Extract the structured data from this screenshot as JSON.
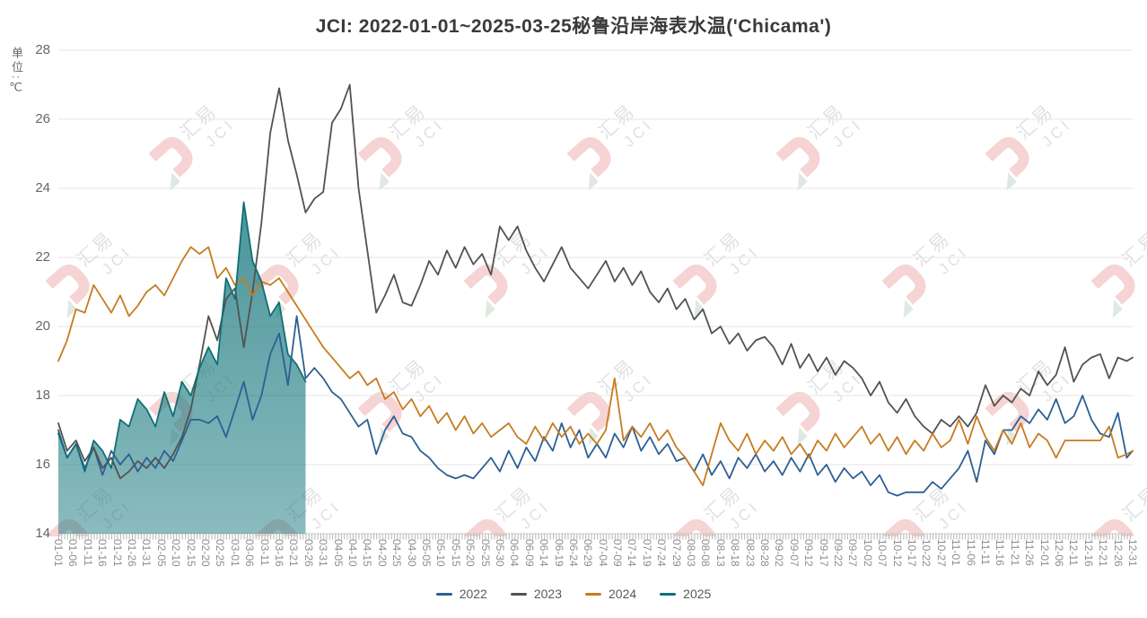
{
  "header": {
    "title": "JCI: 2022-01-01~2025-03-25秘鲁沿岸海表水温('Chicama')"
  },
  "watermark": {
    "line1": "汇易",
    "line2": "JCI"
  },
  "chart_data": {
    "type": "line",
    "title": "JCI: 2022-01-01~2025-03-25秘鲁沿岸海表水温('Chicama')",
    "xlabel": "",
    "ylabel": "单位:℃",
    "ylim": [
      14,
      28
    ],
    "yticks": [
      14,
      16,
      18,
      20,
      22,
      24,
      26,
      28
    ],
    "grid": "horizontal",
    "legend_position": "bottom",
    "x_domain_days": 366,
    "x_tick_step_days": 5,
    "x_minor_tick_step_days": 1,
    "x_tick_labels": [
      "01-01",
      "01-06",
      "01-11",
      "01-16",
      "01-21",
      "01-26",
      "01-31",
      "02-05",
      "02-10",
      "02-15",
      "02-20",
      "02-25",
      "03-01",
      "03-06",
      "03-11",
      "03-16",
      "03-21",
      "03-26",
      "03-31",
      "04-05",
      "04-10",
      "04-15",
      "04-20",
      "04-25",
      "04-30",
      "05-05",
      "05-10",
      "05-15",
      "05-20",
      "05-25",
      "05-30",
      "06-04",
      "06-09",
      "06-14",
      "06-19",
      "06-24",
      "06-29",
      "07-04",
      "07-09",
      "07-14",
      "07-19",
      "07-24",
      "07-29",
      "08-03",
      "08-08",
      "08-13",
      "08-18",
      "08-23",
      "08-28",
      "09-02",
      "09-07",
      "09-12",
      "09-17",
      "09-22",
      "09-27",
      "10-02",
      "10-07",
      "10-12",
      "10-17",
      "10-22",
      "10-27",
      "11-01",
      "11-06",
      "11-11",
      "11-16",
      "11-21",
      "11-26",
      "12-01",
      "12-06",
      "12-11",
      "12-16",
      "12-21",
      "12-26",
      "12-31"
    ],
    "series": [
      {
        "name": "2022",
        "color": "#2d5f93",
        "area_fill": false,
        "day_start": 1,
        "day_step": 3,
        "end_day": 366,
        "values": [
          17.0,
          16.2,
          16.6,
          15.9,
          16.5,
          15.7,
          16.4,
          16.0,
          16.3,
          15.8,
          16.2,
          15.9,
          16.4,
          16.1,
          16.7,
          17.3,
          17.3,
          17.2,
          17.4,
          16.8,
          17.6,
          18.4,
          17.3,
          18.0,
          19.2,
          19.8,
          18.3,
          20.3,
          18.5,
          18.8,
          18.5,
          18.1,
          17.9,
          17.5,
          17.1,
          17.3,
          16.3,
          17.0,
          17.4,
          16.9,
          16.8,
          16.4,
          16.2,
          15.9,
          15.7,
          15.6,
          15.7,
          15.6,
          15.9,
          16.2,
          15.8,
          16.4,
          15.9,
          16.5,
          16.1,
          16.8,
          16.4,
          17.2,
          16.5,
          17.0,
          16.2,
          16.6,
          16.2,
          16.9,
          16.5,
          17.1,
          16.4,
          16.8,
          16.3,
          16.6,
          16.1,
          16.2,
          15.8,
          16.3,
          15.7,
          16.1,
          15.6,
          16.2,
          15.9,
          16.3,
          15.8,
          16.1,
          15.7,
          16.2,
          15.8,
          16.3,
          15.7,
          16.0,
          15.5,
          15.9,
          15.6,
          15.8,
          15.4,
          15.7,
          15.2,
          15.1,
          15.2,
          15.2,
          15.2,
          15.5,
          15.3,
          15.6,
          15.9,
          16.4,
          15.5,
          16.7,
          16.3,
          17.0,
          17.0,
          17.4,
          17.2,
          17.6,
          17.3,
          17.9,
          17.2,
          17.4,
          18.0,
          17.3,
          16.9,
          16.8,
          17.5,
          16.2,
          16.4
        ]
      },
      {
        "name": "2023",
        "color": "#525252",
        "area_fill": false,
        "day_start": 1,
        "day_step": 3,
        "end_day": 366,
        "values": [
          17.2,
          16.4,
          16.7,
          16.1,
          16.5,
          15.9,
          16.2,
          15.6,
          15.8,
          16.1,
          15.9,
          16.2,
          15.9,
          16.3,
          16.8,
          17.6,
          18.9,
          20.3,
          19.6,
          20.8,
          21.1,
          19.4,
          21.0,
          23.0,
          25.6,
          26.9,
          25.4,
          24.4,
          23.3,
          23.7,
          23.9,
          25.9,
          26.3,
          27.0,
          24.0,
          22.2,
          20.4,
          20.9,
          21.5,
          20.7,
          20.6,
          21.2,
          21.9,
          21.5,
          22.2,
          21.7,
          22.3,
          21.8,
          22.1,
          21.5,
          22.9,
          22.5,
          22.9,
          22.2,
          21.7,
          21.3,
          21.8,
          22.3,
          21.7,
          21.4,
          21.1,
          21.5,
          21.9,
          21.3,
          21.7,
          21.2,
          21.6,
          21.0,
          20.7,
          21.1,
          20.5,
          20.8,
          20.2,
          20.5,
          19.8,
          20.0,
          19.5,
          19.8,
          19.3,
          19.6,
          19.7,
          19.4,
          18.9,
          19.5,
          18.8,
          19.2,
          18.7,
          19.1,
          18.6,
          19.0,
          18.8,
          18.5,
          18.0,
          18.4,
          17.8,
          17.5,
          17.9,
          17.4,
          17.1,
          16.9,
          17.3,
          17.1,
          17.4,
          17.1,
          17.5,
          18.3,
          17.7,
          18.0,
          17.8,
          18.2,
          18.0,
          18.7,
          18.3,
          18.6,
          19.4,
          18.4,
          18.9,
          19.1,
          19.2,
          18.5,
          19.1,
          19.0,
          19.1
        ]
      },
      {
        "name": "2024",
        "color": "#c77b1f",
        "area_fill": false,
        "day_start": 1,
        "day_step": 3,
        "end_day": 366,
        "values": [
          19.0,
          19.6,
          20.5,
          20.4,
          21.2,
          20.8,
          20.4,
          20.9,
          20.3,
          20.6,
          21.0,
          21.2,
          20.9,
          21.4,
          21.9,
          22.3,
          22.1,
          22.3,
          21.4,
          21.7,
          21.2,
          21.4,
          20.9,
          21.3,
          21.2,
          21.4,
          21.0,
          20.6,
          20.2,
          19.8,
          19.4,
          19.1,
          18.8,
          18.5,
          18.7,
          18.3,
          18.5,
          17.9,
          18.1,
          17.6,
          17.9,
          17.4,
          17.7,
          17.2,
          17.5,
          17.0,
          17.4,
          16.9,
          17.2,
          16.8,
          17.0,
          17.2,
          16.8,
          16.6,
          17.1,
          16.7,
          17.2,
          16.8,
          17.1,
          16.6,
          16.9,
          16.6,
          17.0,
          18.5,
          16.7,
          17.1,
          16.8,
          17.2,
          16.7,
          17.0,
          16.5,
          16.2,
          15.8,
          15.4,
          16.3,
          17.2,
          16.7,
          16.4,
          16.9,
          16.3,
          16.7,
          16.4,
          16.8,
          16.3,
          16.6,
          16.2,
          16.7,
          16.4,
          16.9,
          16.5,
          16.8,
          17.1,
          16.6,
          16.9,
          16.4,
          16.8,
          16.3,
          16.7,
          16.4,
          16.9,
          16.5,
          16.7,
          17.3,
          16.6,
          17.4,
          16.8,
          16.4,
          17.0,
          16.6,
          17.2,
          16.5,
          16.9,
          16.7,
          16.2,
          16.7,
          16.7,
          16.7,
          16.7,
          16.7,
          17.1,
          16.2,
          16.3,
          16.4
        ]
      },
      {
        "name": "2025",
        "color": "#0f6f76",
        "area_fill": true,
        "fill_rgb": "23,120,126",
        "fill_alpha_top": 0.78,
        "fill_alpha_bottom": 0.5,
        "day_start": 1,
        "day_step": 3,
        "end_day": 85,
        "values": [
          16.9,
          16.2,
          16.6,
          15.8,
          16.7,
          16.4,
          15.9,
          17.3,
          17.1,
          17.9,
          17.6,
          17.1,
          18.1,
          17.4,
          18.4,
          18.0,
          18.8,
          19.4,
          18.9,
          21.4,
          20.8,
          23.6,
          21.9,
          21.3,
          20.3,
          20.7,
          19.2,
          18.9,
          18.4
        ]
      }
    ]
  }
}
